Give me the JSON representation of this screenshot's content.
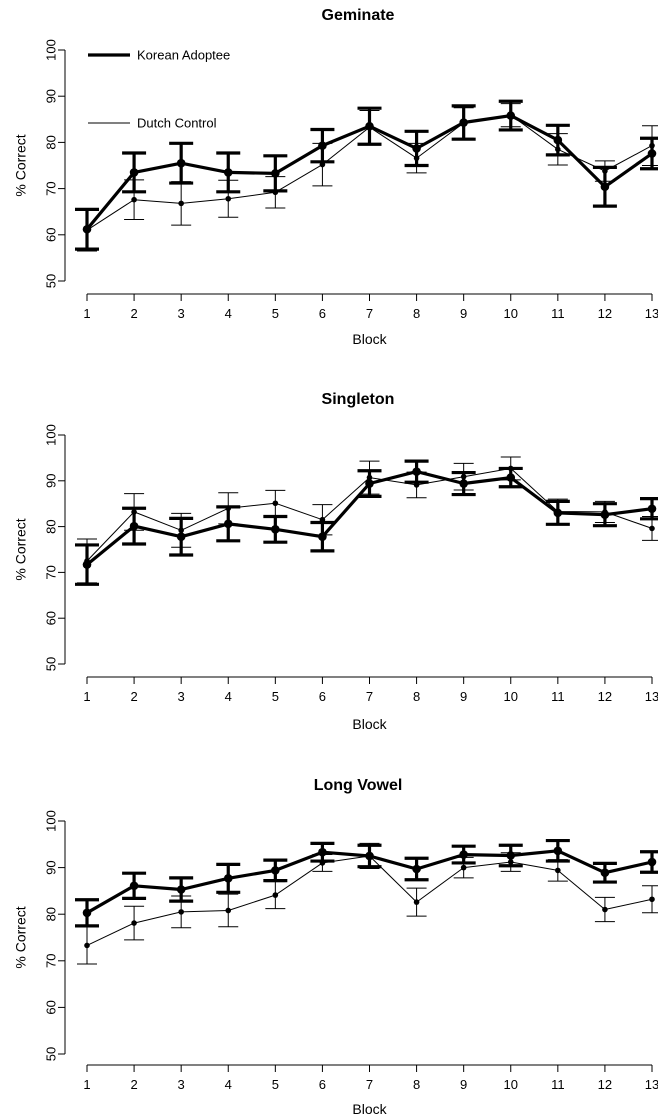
{
  "legend": {
    "placement": "top-left",
    "entries": [
      "Korean Adoptee",
      "Dutch Control"
    ]
  },
  "colors": {
    "lines": "#000000",
    "background": "#ffffff"
  },
  "chart_data": [
    {
      "type": "line",
      "title": "Geminate",
      "xlabel": "Block",
      "ylabel": "% Correct",
      "ylim": [
        50,
        100
      ],
      "yticks": [
        50,
        60,
        70,
        80,
        90,
        100
      ],
      "x": [
        1,
        2,
        3,
        4,
        5,
        6,
        7,
        8,
        9,
        10,
        11,
        12,
        13
      ],
      "error_bars": true,
      "grid": false,
      "legend": "top-left",
      "series": [
        {
          "name": "Korean Adoptee",
          "style": "thick",
          "values": [
            61.2,
            73.5,
            75.5,
            73.5,
            73.3,
            79.3,
            83.5,
            78.7,
            84.3,
            85.8,
            80.5,
            70.4,
            77.6
          ],
          "err": [
            4.3,
            4.2,
            4.3,
            4.2,
            3.8,
            3.5,
            3.9,
            3.7,
            3.6,
            3.1,
            3.2,
            4.2,
            3.3
          ]
        },
        {
          "name": "Dutch Control",
          "style": "thin",
          "values": [
            61.0,
            67.6,
            66.8,
            67.8,
            69.2,
            75.2,
            83.3,
            76.6,
            84.2,
            85.9,
            78.5,
            73.8,
            79.3
          ],
          "err": [
            4.5,
            4.3,
            4.7,
            4.0,
            3.4,
            4.6,
            3.6,
            3.2,
            3.3,
            2.5,
            3.4,
            2.2,
            4.3
          ]
        }
      ]
    },
    {
      "type": "line",
      "title": "Singleton",
      "xlabel": "Block",
      "ylabel": "% Correct",
      "ylim": [
        50,
        100
      ],
      "yticks": [
        50,
        60,
        70,
        80,
        90,
        100
      ],
      "x": [
        1,
        2,
        3,
        4,
        5,
        6,
        7,
        8,
        9,
        10,
        11,
        12,
        13
      ],
      "error_bars": true,
      "grid": false,
      "series": [
        {
          "name": "Korean Adoptee",
          "style": "thick",
          "values": [
            71.7,
            80.1,
            77.8,
            80.6,
            79.4,
            77.8,
            89.4,
            92.0,
            89.4,
            90.7,
            83.0,
            82.6,
            83.9
          ],
          "err": [
            4.3,
            3.9,
            4.0,
            3.7,
            2.8,
            3.1,
            2.8,
            2.3,
            2.4,
            2.0,
            2.5,
            2.4,
            2.2
          ]
        },
        {
          "name": "Dutch Control",
          "style": "thin",
          "values": [
            72.5,
            83.2,
            79.2,
            84.0,
            85.1,
            81.5,
            90.7,
            89.1,
            90.9,
            92.7,
            83.3,
            83.2,
            79.6
          ],
          "err": [
            4.8,
            4.0,
            3.7,
            3.4,
            2.8,
            3.3,
            3.6,
            2.8,
            2.9,
            2.5,
            2.7,
            2.3,
            2.6
          ]
        }
      ]
    },
    {
      "type": "line",
      "title": "Long Vowel",
      "xlabel": "Block",
      "ylabel": "% Correct",
      "ylim": [
        50,
        100
      ],
      "yticks": [
        50,
        60,
        70,
        80,
        90,
        100
      ],
      "x": [
        1,
        2,
        3,
        4,
        5,
        6,
        7,
        8,
        9,
        10,
        11,
        12,
        13
      ],
      "error_bars": true,
      "grid": false,
      "series": [
        {
          "name": "Korean Adoptee",
          "style": "thick",
          "values": [
            80.3,
            86.1,
            85.3,
            87.7,
            89.4,
            93.3,
            92.5,
            89.7,
            92.8,
            92.6,
            93.6,
            88.9,
            91.2
          ],
          "err": [
            2.8,
            2.7,
            2.5,
            3.0,
            2.2,
            1.9,
            2.3,
            2.3,
            1.8,
            2.2,
            2.2,
            2.0,
            2.2
          ]
        },
        {
          "name": "Dutch Control",
          "style": "thin",
          "values": [
            73.3,
            78.1,
            80.5,
            80.8,
            84.1,
            91.0,
            92.5,
            82.6,
            90.0,
            91.2,
            89.4,
            81.0,
            83.2
          ],
          "err": [
            4.0,
            3.6,
            3.4,
            3.5,
            2.9,
            1.8,
            2.7,
            3.0,
            2.2,
            2.0,
            2.3,
            2.6,
            2.9
          ]
        }
      ]
    }
  ]
}
